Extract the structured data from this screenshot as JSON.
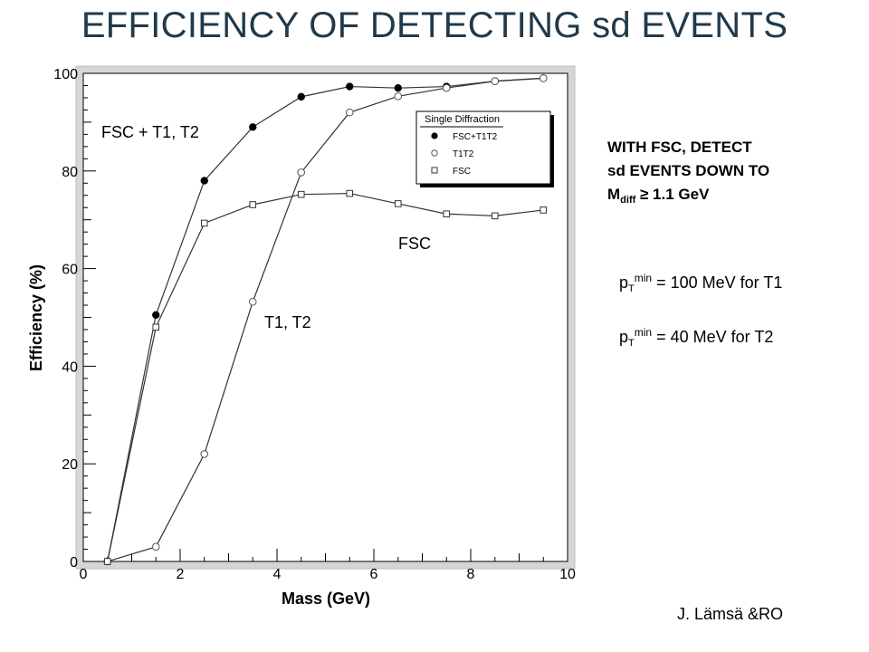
{
  "title": "EFFICIENCY OF DETECTING sd EVENTS",
  "chart_data": {
    "type": "line",
    "xlabel": "Mass (GeV)",
    "ylabel": "Efficiency (%)",
    "xlim": [
      0,
      10
    ],
    "ylim": [
      0,
      100
    ],
    "x_ticks": [
      "0",
      "2",
      "4",
      "6",
      "8",
      "10"
    ],
    "y_ticks": [
      "0",
      "20",
      "40",
      "60",
      "80",
      "100"
    ],
    "grid": false,
    "legend": {
      "title": "Single Diffraction",
      "placement": "top-right",
      "entries": [
        "FSC+T1T2",
        "T1T2",
        "FSC"
      ]
    },
    "x": [
      0.5,
      1.5,
      2.5,
      3.5,
      4.5,
      5.5,
      6.5,
      7.5,
      8.5,
      9.5
    ],
    "series": [
      {
        "name": "FSC+T1T2",
        "marker": "filled-circle",
        "values": [
          0,
          50.5,
          78,
          89,
          95.2,
          97.3,
          97,
          97.3,
          98.4,
          99
        ]
      },
      {
        "name": "T1T2",
        "marker": "open-circle",
        "values": [
          0,
          3,
          22,
          53.2,
          79.7,
          92,
          95.3,
          97,
          98.4,
          99
        ]
      },
      {
        "name": "FSC",
        "marker": "open-square",
        "values": [
          0,
          48,
          69.3,
          73.1,
          75.2,
          75.4,
          73.3,
          71.2,
          70.8,
          72
        ]
      }
    ],
    "annotations": [
      "FSC + T1, T2",
      "FSC",
      "T1, T2"
    ]
  },
  "notes": {
    "line1": "WITH FSC, DETECT",
    "line2": "sd EVENTS DOWN TO",
    "line3_main": "M",
    "line3_sub": "diff",
    "line3_rest": " ≥ 1.1 GeV",
    "pt1": {
      "p": "p",
      "sub": "T",
      "sup": "min",
      "rest": " = 100 MeV for T1"
    },
    "pt2": {
      "p": "p",
      "sub": "T",
      "sup": "min",
      "rest": " =  40 MeV for T2"
    }
  },
  "credit": "J. Lämsä &RO"
}
